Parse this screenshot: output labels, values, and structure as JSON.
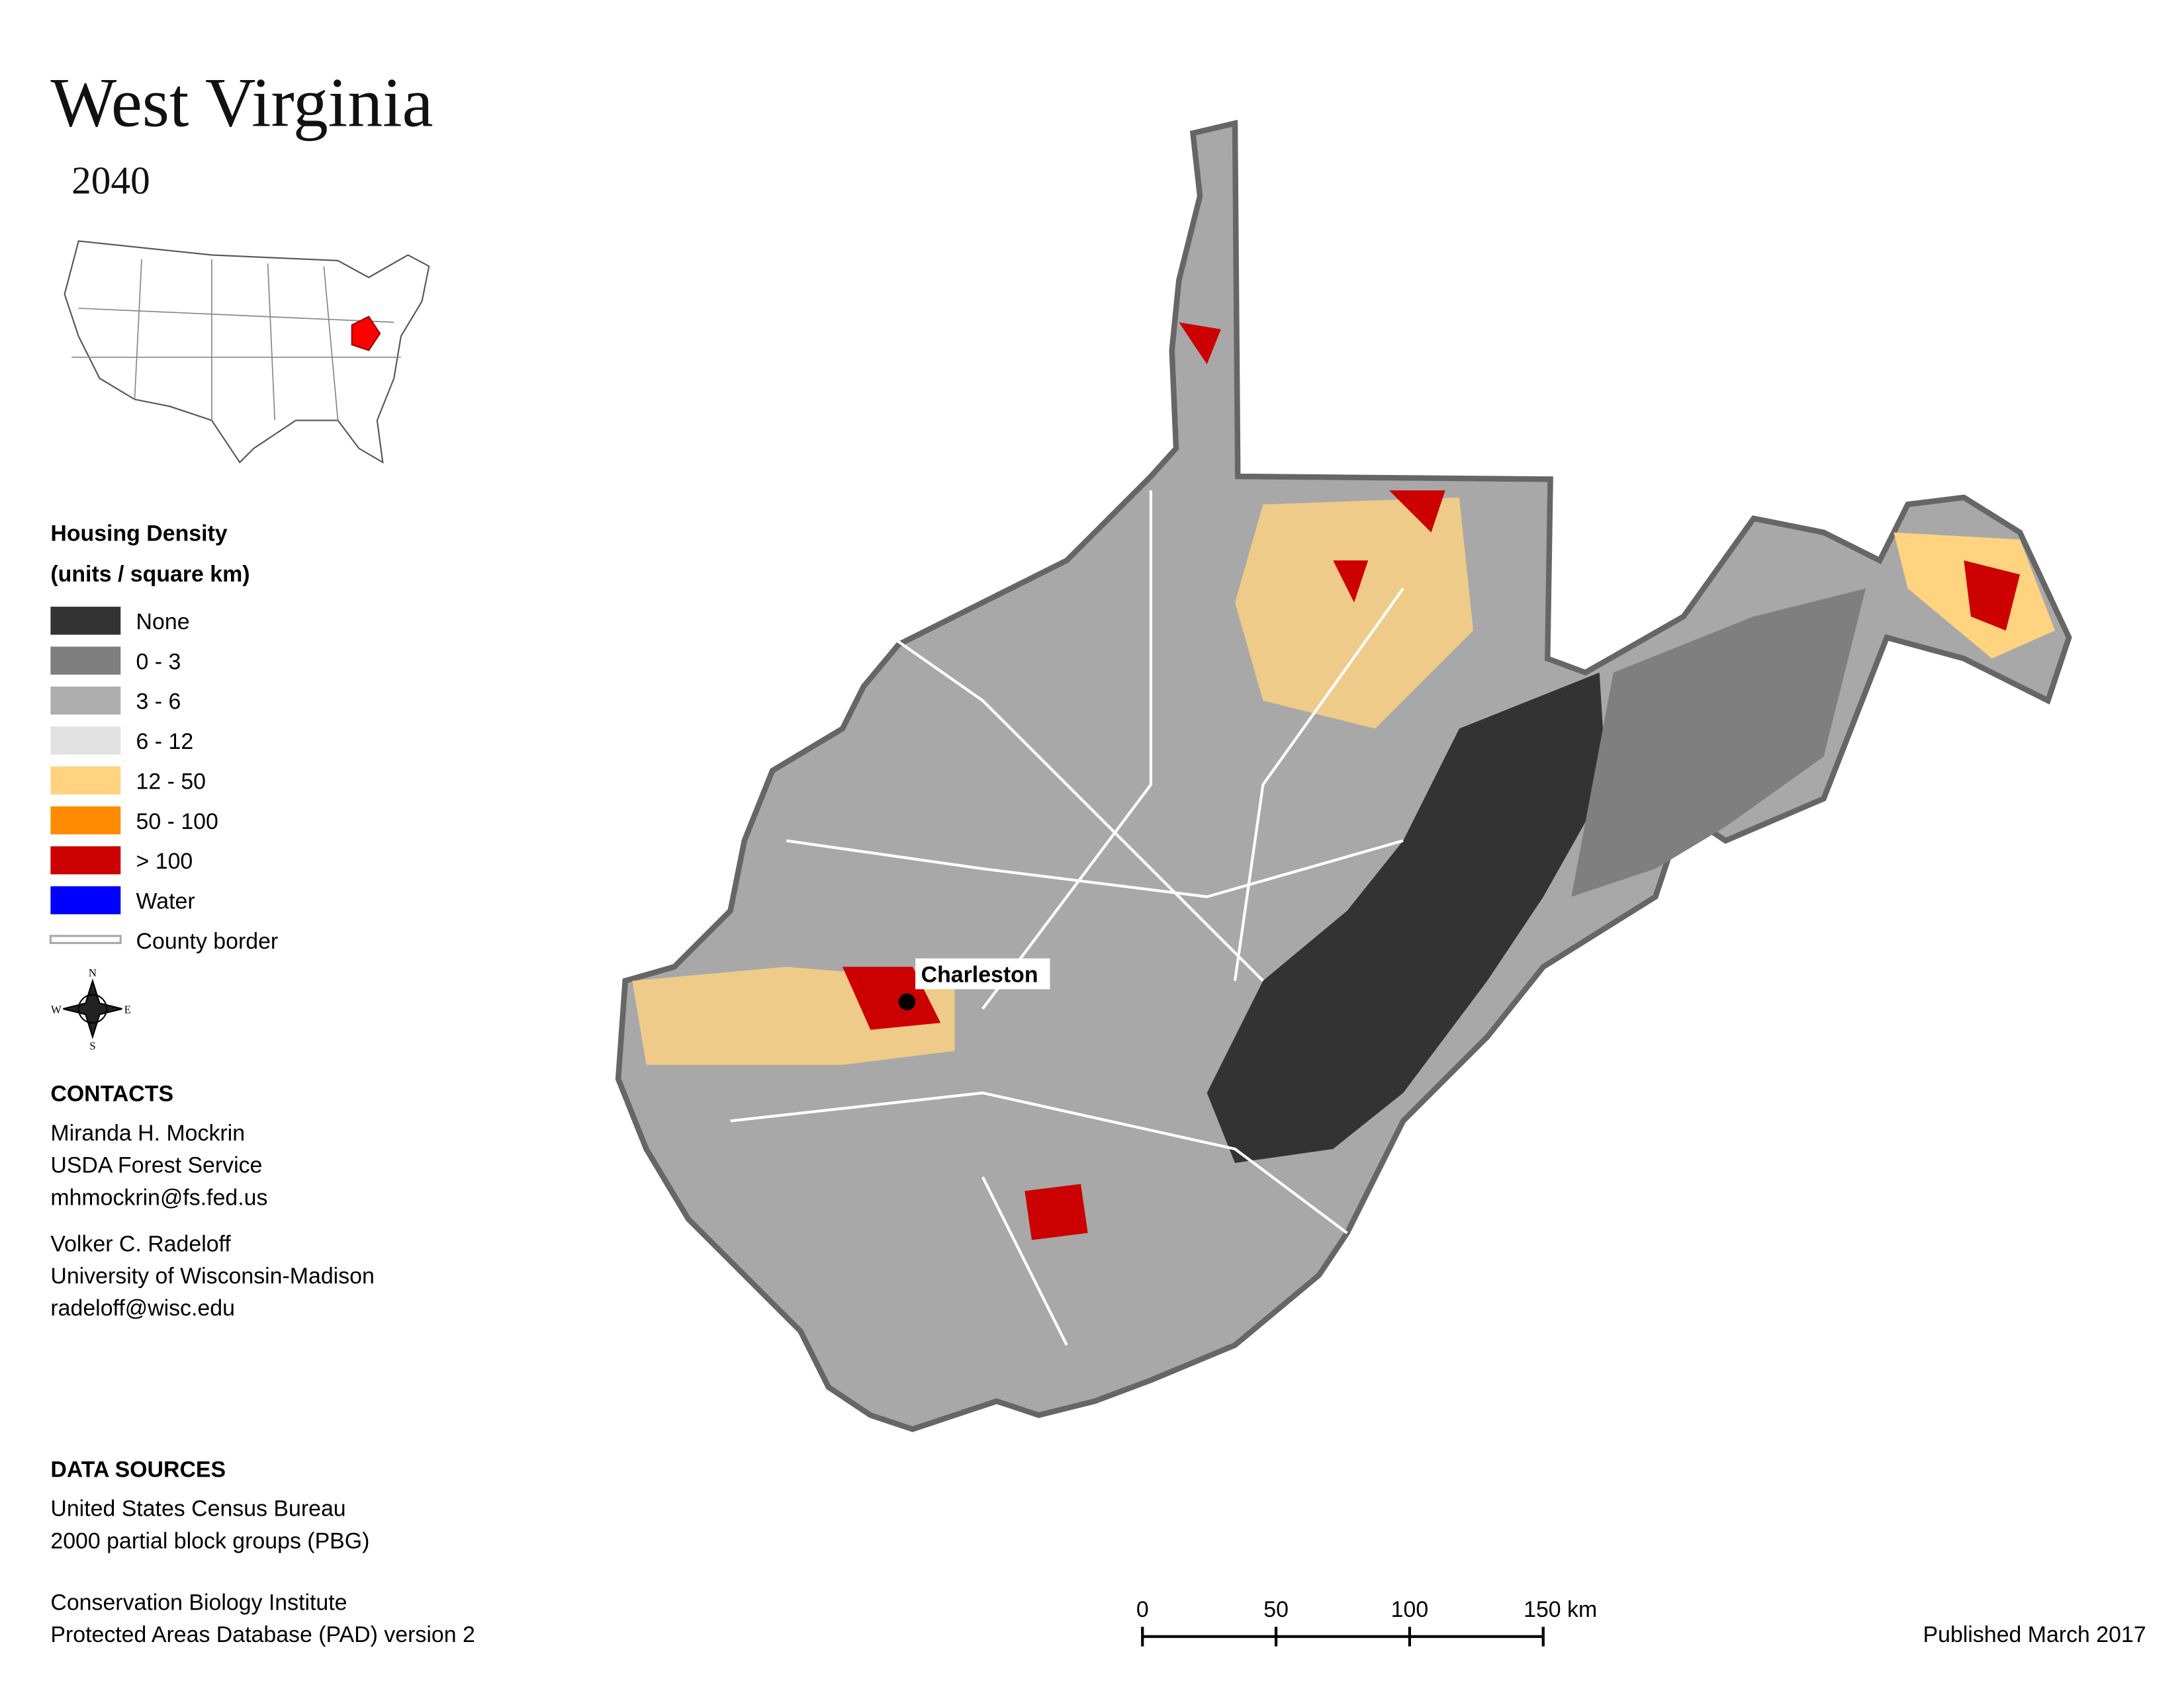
{
  "title": "West Virginia",
  "subtitle": "2040",
  "legend": {
    "title": "Housing Density",
    "subtitle": "(units / square km)",
    "items": [
      {
        "label": "None",
        "color": "#333333"
      },
      {
        "label": "0 - 3",
        "color": "#7f7f7f"
      },
      {
        "label": "3 - 6",
        "color": "#adadad"
      },
      {
        "label": "6 - 12",
        "color": "#e1e1e1"
      },
      {
        "label": "12 - 50",
        "color": "#ffd37f"
      },
      {
        "label": "50 - 100",
        "color": "#ff8c00"
      },
      {
        "label": "> 100",
        "color": "#cc0000"
      },
      {
        "label": "Water",
        "color": "#0000ff"
      },
      {
        "label": "County border",
        "color": "#ffffff"
      }
    ]
  },
  "compass": {
    "n": "N",
    "s": "S",
    "e": "E",
    "w": "W"
  },
  "city": "Charleston",
  "contacts": {
    "heading": "CONTACTS",
    "people": [
      [
        "Miranda H. Mockrin",
        "USDA Forest Service",
        "mhmockrin@fs.fed.us"
      ],
      [
        "Volker C. Radeloff",
        "University of Wisconsin-Madison",
        "radeloff@wisc.edu"
      ]
    ]
  },
  "data_sources": {
    "heading": "DATA SOURCES",
    "entries": [
      [
        "United States Census Bureau",
        "2000 partial block groups (PBG)"
      ],
      [
        "Conservation Biology Institute",
        "Protected Areas Database (PAD) version 2"
      ]
    ]
  },
  "scale_bar": [
    "0",
    "50",
    "100",
    "150 km"
  ],
  "published": "Published March 2017"
}
